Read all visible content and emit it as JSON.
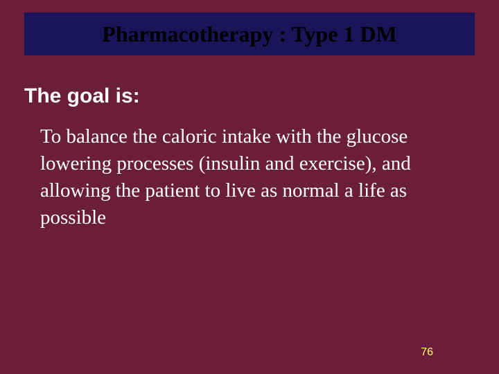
{
  "slide": {
    "title": "Pharmacotherapy : Type 1 DM",
    "subtitle": "The goal is:",
    "body": "To balance the caloric intake with the glucose lowering processes (insulin and exercise), and allowing the patient to live as normal a life as possible",
    "page_number": "76"
  },
  "style": {
    "background_color": "#6b1e3a",
    "title_bar_color": "#1a1558",
    "title_text_color": "#000000",
    "body_text_color": "#ffffff",
    "page_number_color": "#ffff66",
    "title_fontsize": 32,
    "subtitle_fontsize": 30,
    "body_fontsize": 29,
    "page_number_fontsize": 16,
    "title_font": "Times New Roman",
    "subtitle_font": "Arial",
    "body_font": "Times New Roman"
  }
}
